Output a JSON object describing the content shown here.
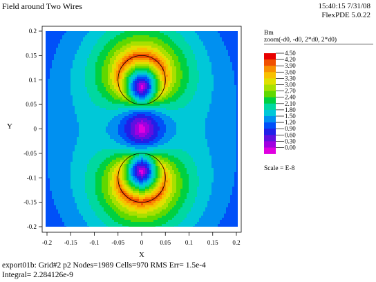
{
  "header": {
    "title": "Field around Two Wires",
    "timestamp": "15:40:15 7/31/08",
    "version": "FlexPDE 5.0.22"
  },
  "footer": {
    "line1": "export01b:  Grid#2  p2  Nodes=1989 Cells=970 RMS Err= 1.5e-4",
    "line2": "Integral=  2.284126e-9"
  },
  "chart_data": {
    "type": "heatmap",
    "title": "Field around Two Wires",
    "xlabel": "X",
    "ylabel": "Y",
    "xlim": [
      -0.2,
      0.2
    ],
    "ylim": [
      -0.2,
      0.2
    ],
    "x_ticks": [
      "-0.2",
      "-0.15",
      "-0.1",
      "-0.05",
      "0",
      "0.05",
      "0.1",
      "0.15",
      "0.2"
    ],
    "y_ticks": [
      "0.2",
      "0.15",
      "0.1",
      "0.05",
      "0",
      "-0.05",
      "-0.1",
      "-0.15",
      "-0.2"
    ],
    "legend": {
      "variable": "Bm",
      "zoom": "zoom(-d0, -d0, 2*d0, 2*d0)",
      "scale": "Scale = E-8",
      "levels": [
        "4.50",
        "4.20",
        "3.90",
        "3.60",
        "3.30",
        "3.00",
        "2.70",
        "2.40",
        "2.10",
        "1.80",
        "1.50",
        "1.20",
        "0.90",
        "0.60",
        "0.30",
        "0.00"
      ],
      "colors": [
        "#e80000",
        "#f05000",
        "#f89000",
        "#f8c000",
        "#e0e000",
        "#a8e000",
        "#60d800",
        "#00d040",
        "#00d8a0",
        "#00c8d8",
        "#0090f0",
        "#0050f8",
        "#2020e8",
        "#6010e0",
        "#a000e0",
        "#e000e0"
      ]
    },
    "wires": [
      {
        "x": 0,
        "y": 0.1,
        "radius": 0.05
      },
      {
        "x": 0,
        "y": -0.1,
        "radius": 0.05
      }
    ],
    "field_maximum": 4.5,
    "field_units_scale": "E-8"
  }
}
